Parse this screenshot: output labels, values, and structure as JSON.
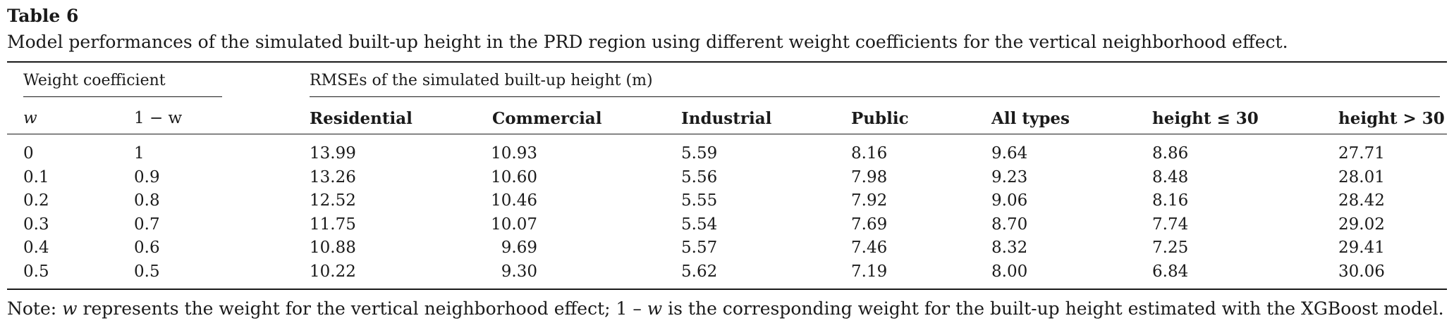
{
  "table": {
    "label": "Table 6",
    "caption": "Model performances of the simulated built-up height in the PRD region using different weight coefficients for the vertical neighborhood effect.",
    "group_headers": {
      "weight": "Weight coefficient",
      "rmse": "RMSEs of the simulated built-up height (m)"
    },
    "columns": {
      "w": "w",
      "one_minus_w": "1 − w",
      "residential": "Residential",
      "commercial": "Commercial",
      "industrial": "Industrial",
      "public": "Public",
      "all_types": "All types",
      "height_le_30": "height ≤ 30",
      "height_gt_30": "height > 30"
    },
    "rows": [
      {
        "w": "0",
        "one_minus_w": "1",
        "residential": "13.99",
        "commercial": "10.93",
        "industrial": "5.59",
        "public": "8.16",
        "all_types": "9.64",
        "height_le_30": "8.86",
        "height_gt_30": "27.71"
      },
      {
        "w": "0.1",
        "one_minus_w": "0.9",
        "residential": "13.26",
        "commercial": "10.60",
        "industrial": "5.56",
        "public": "7.98",
        "all_types": "9.23",
        "height_le_30": "8.48",
        "height_gt_30": "28.01"
      },
      {
        "w": "0.2",
        "one_minus_w": "0.8",
        "residential": "12.52",
        "commercial": "10.46",
        "industrial": "5.55",
        "public": "7.92",
        "all_types": "9.06",
        "height_le_30": "8.16",
        "height_gt_30": "28.42"
      },
      {
        "w": "0.3",
        "one_minus_w": "0.7",
        "residential": "11.75",
        "commercial": "10.07",
        "industrial": "5.54",
        "public": "7.69",
        "all_types": "8.70",
        "height_le_30": "7.74",
        "height_gt_30": "29.02"
      },
      {
        "w": "0.4",
        "one_minus_w": "0.6",
        "residential": "10.88",
        "commercial": "9.69",
        "industrial": "5.57",
        "public": "7.46",
        "all_types": "8.32",
        "height_le_30": "7.25",
        "height_gt_30": "29.41"
      },
      {
        "w": "0.5",
        "one_minus_w": "0.5",
        "residential": "10.22",
        "commercial": "9.30",
        "industrial": "5.62",
        "public": "7.19",
        "all_types": "8.00",
        "height_le_30": "6.84",
        "height_gt_30": "30.06"
      }
    ],
    "note": {
      "prefix": "Note: ",
      "w": "w",
      "part1": " represents the weight for the vertical neighborhood effect; 1 – ",
      "w2": "w",
      "part2": " is the corresponding weight for the built-up height estimated with the XGBoost model."
    }
  }
}
